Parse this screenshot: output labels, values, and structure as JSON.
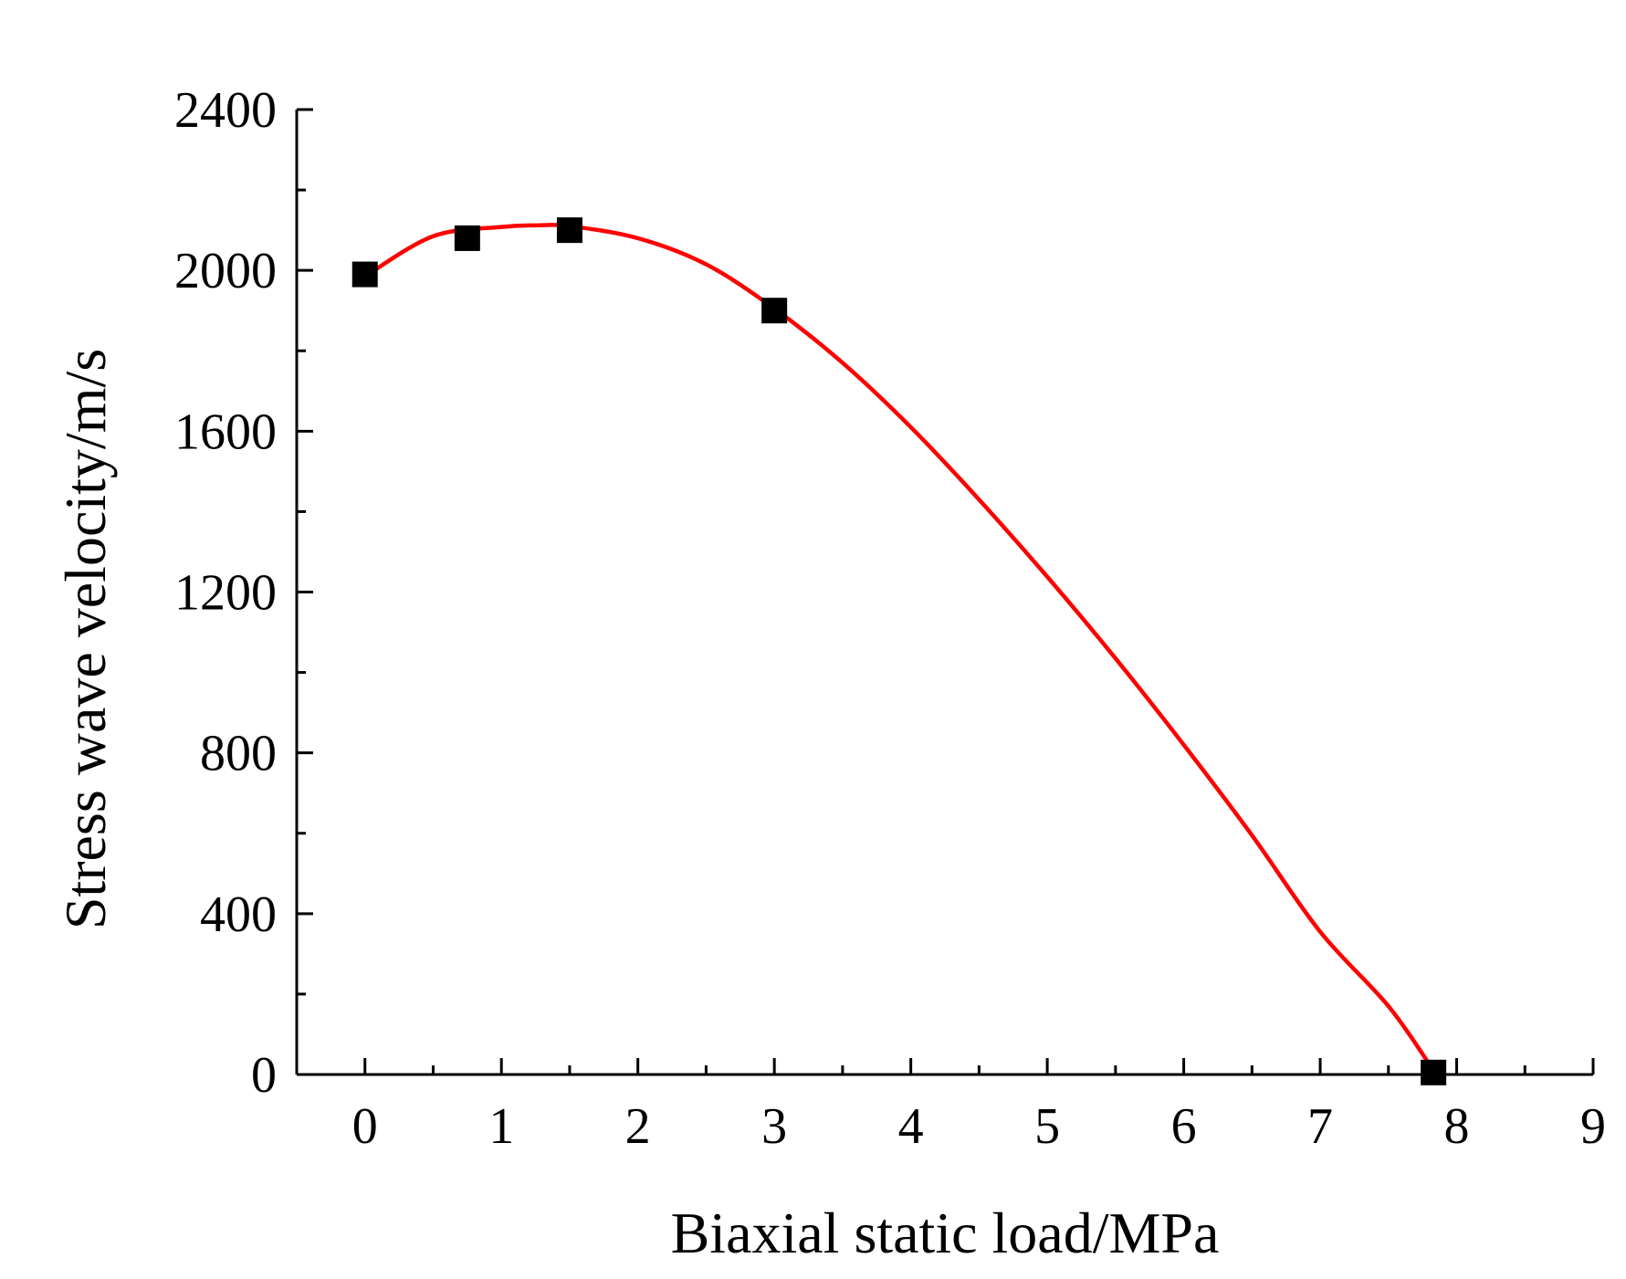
{
  "chart_data": {
    "type": "scatter",
    "title": "",
    "xlabel": "Biaxial static load/MPa",
    "ylabel": "Stress wave velocity/m/s",
    "xlim": [
      -0.5,
      9
    ],
    "ylim": [
      0,
      2400
    ],
    "xticks": [
      0,
      1,
      2,
      3,
      4,
      5,
      6,
      7,
      8,
      9
    ],
    "yticks": [
      0,
      400,
      800,
      1200,
      1600,
      2000,
      2400
    ],
    "grid": false,
    "legend": "none",
    "series": [
      {
        "kind": "points",
        "marker": "square",
        "color": "#000000",
        "x": [
          0,
          0.75,
          1.5,
          3,
          7.83
        ],
        "y": [
          1990,
          2080,
          2100,
          1900,
          5
        ]
      },
      {
        "kind": "fit-curve",
        "color": "#ff0000",
        "x": [
          0,
          0.5,
          1,
          1.25,
          1.5,
          2,
          2.5,
          3,
          3.5,
          4,
          4.5,
          5,
          5.5,
          6,
          6.5,
          7,
          7.5,
          7.83
        ],
        "y": [
          1985,
          2085,
          2108,
          2112,
          2110,
          2080,
          2015,
          1905,
          1770,
          1610,
          1430,
          1238,
          1035,
          820,
          595,
          355,
          170,
          10
        ]
      }
    ]
  }
}
